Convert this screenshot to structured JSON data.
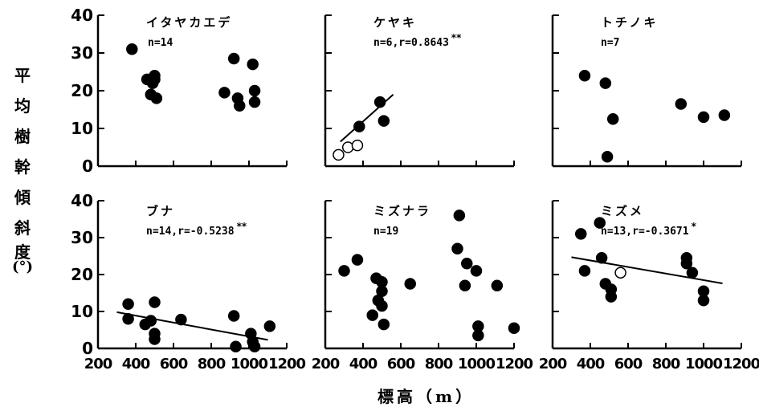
{
  "figure": {
    "ylabel": "平均樹幹傾斜度（°）",
    "ylabel_chars": [
      "平",
      "均",
      "樹",
      "幹",
      "傾",
      "斜",
      "度",
      "(°)"
    ],
    "xlabel": "標高（m）"
  },
  "chart_data": [
    {
      "type": "scatter",
      "title": "イタヤカエデ",
      "stat": "n=14",
      "xlim": [
        200,
        1200
      ],
      "ylim": [
        0,
        40
      ],
      "yticks": [
        0,
        10,
        20,
        30,
        40
      ],
      "xticks": [],
      "series": [
        {
          "marker": "filled",
          "points": [
            [
              380,
              31
            ],
            [
              460,
              23
            ],
            [
              480,
              19
            ],
            [
              490,
              22
            ],
            [
              500,
              23
            ],
            [
              500,
              24
            ],
            [
              510,
              18
            ],
            [
              870,
              19.5
            ],
            [
              920,
              28.5
            ],
            [
              940,
              18
            ],
            [
              950,
              16
            ],
            [
              1020,
              27
            ],
            [
              1030,
              20
            ],
            [
              1030,
              17
            ]
          ]
        }
      ]
    },
    {
      "type": "scatter",
      "title": "ケヤキ",
      "stat": "n=6,r=0.8643",
      "significance": "**",
      "xlim": [
        200,
        1200
      ],
      "ylim": [
        0,
        40
      ],
      "yticks": [],
      "xticks": [],
      "regression": [
        [
          280,
          6.5
        ],
        [
          560,
          19
        ]
      ],
      "series": [
        {
          "marker": "filled",
          "points": [
            [
              380,
              10.5
            ],
            [
              490,
              17
            ],
            [
              510,
              12
            ]
          ]
        },
        {
          "marker": "open",
          "points": [
            [
              270,
              3
            ],
            [
              320,
              5
            ],
            [
              370,
              5.5
            ]
          ]
        }
      ]
    },
    {
      "type": "scatter",
      "title": "トチノキ",
      "stat": "n=7",
      "xlim": [
        200,
        1200
      ],
      "ylim": [
        0,
        40
      ],
      "yticks": [],
      "xticks": [],
      "series": [
        {
          "marker": "filled",
          "points": [
            [
              370,
              24
            ],
            [
              480,
              22
            ],
            [
              490,
              2.5
            ],
            [
              520,
              12.5
            ],
            [
              880,
              16.5
            ],
            [
              1000,
              13
            ],
            [
              1110,
              13.5
            ]
          ]
        }
      ]
    },
    {
      "type": "scatter",
      "title": "ブナ",
      "stat": "n=14,r=-0.5238",
      "significance": "**",
      "xlim": [
        200,
        1200
      ],
      "ylim": [
        0,
        40
      ],
      "yticks": [
        0,
        10,
        20,
        30,
        40
      ],
      "xticks": [
        200,
        400,
        600,
        800,
        1000,
        1200
      ],
      "regression": [
        [
          300,
          9.8
        ],
        [
          1100,
          2.3
        ]
      ],
      "series": [
        {
          "marker": "filled",
          "points": [
            [
              360,
              12
            ],
            [
              360,
              8
            ],
            [
              450,
              6.5
            ],
            [
              480,
              7.5
            ],
            [
              500,
              12.5
            ],
            [
              500,
              4
            ],
            [
              500,
              2.5
            ],
            [
              640,
              7.8
            ],
            [
              920,
              8.8
            ],
            [
              930,
              0.5
            ],
            [
              1010,
              4
            ],
            [
              1020,
              1.8
            ],
            [
              1030,
              0.5
            ],
            [
              1110,
              6
            ]
          ]
        }
      ]
    },
    {
      "type": "scatter",
      "title": "ミズナラ",
      "stat": "n=19",
      "xlim": [
        200,
        1200
      ],
      "ylim": [
        0,
        40
      ],
      "yticks": [],
      "xticks": [
        200,
        400,
        600,
        800,
        1000,
        1200
      ],
      "series": [
        {
          "marker": "filled",
          "points": [
            [
              300,
              21
            ],
            [
              370,
              24
            ],
            [
              450,
              9
            ],
            [
              470,
              19
            ],
            [
              500,
              18
            ],
            [
              500,
              15.5
            ],
            [
              500,
              11.5
            ],
            [
              510,
              6.5
            ],
            [
              650,
              17.5
            ],
            [
              900,
              27
            ],
            [
              910,
              36
            ],
            [
              940,
              17
            ],
            [
              950,
              23
            ],
            [
              1000,
              21
            ],
            [
              1010,
              6
            ],
            [
              1010,
              3.5
            ],
            [
              1110,
              17
            ],
            [
              1200,
              5.5
            ],
            [
              480,
              13
            ]
          ]
        }
      ]
    },
    {
      "type": "scatter",
      "title": "ミズメ",
      "stat": "n=13,r=-0.3671",
      "significance": "*",
      "xlim": [
        200,
        1200
      ],
      "ylim": [
        0,
        40
      ],
      "yticks": [],
      "xticks": [
        200,
        400,
        600,
        800,
        1000,
        1200
      ],
      "regression": [
        [
          300,
          24.7
        ],
        [
          1100,
          17.6
        ]
      ],
      "series": [
        {
          "marker": "filled",
          "points": [
            [
              350,
              31
            ],
            [
              370,
              21
            ],
            [
              450,
              34
            ],
            [
              460,
              24.5
            ],
            [
              480,
              17.5
            ],
            [
              510,
              16
            ],
            [
              510,
              14
            ],
            [
              910,
              24.5
            ],
            [
              910,
              23
            ],
            [
              940,
              20.5
            ],
            [
              1000,
              15.5
            ],
            [
              1000,
              13
            ]
          ]
        },
        {
          "marker": "open",
          "points": [
            [
              560,
              20.5
            ]
          ]
        }
      ]
    }
  ]
}
